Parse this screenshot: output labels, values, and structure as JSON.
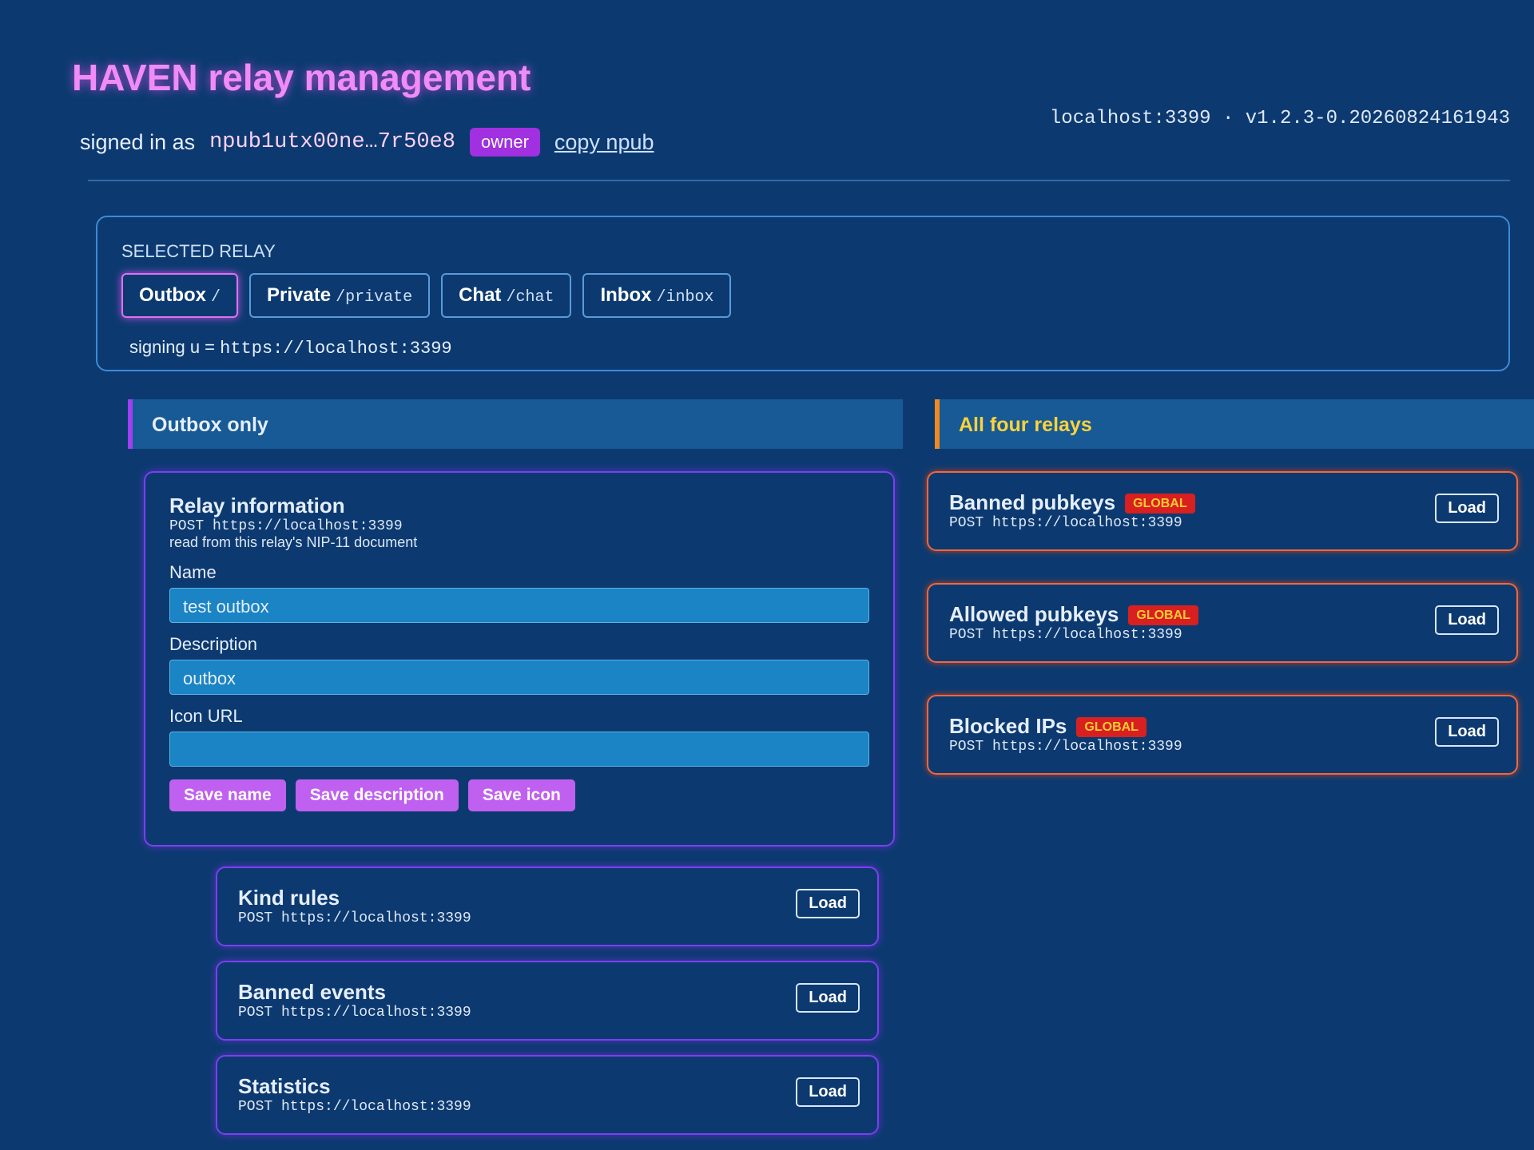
{
  "header": {
    "title": "HAVEN relay management",
    "signed_in_label": "signed in as",
    "npub": "npub1utx00ne…7r50e8",
    "role": "owner",
    "copy_link": "copy npub",
    "host_version": "localhost:3399 · v1.2.3-0.20260824161943"
  },
  "selected_relay": {
    "label": "SELECTED RELAY",
    "tabs": [
      {
        "name": "Outbox",
        "path": "/"
      },
      {
        "name": "Private",
        "path": "/private"
      },
      {
        "name": "Chat",
        "path": "/chat"
      },
      {
        "name": "Inbox",
        "path": "/inbox"
      }
    ],
    "signing_label": "signing u =",
    "signing_url": "https://localhost:3399"
  },
  "left": {
    "title": "Outbox only",
    "relay_info": {
      "title": "Relay information",
      "endpoint": "POST https://localhost:3399",
      "note": "read from this relay's NIP-11 document",
      "fields": [
        {
          "label": "Name",
          "value": "test outbox"
        },
        {
          "label": "Description",
          "value": "outbox"
        },
        {
          "label": "Icon URL",
          "value": ""
        }
      ],
      "buttons": [
        "Save name",
        "Save description",
        "Save icon"
      ]
    },
    "cards": [
      {
        "title": "Kind rules",
        "endpoint": "POST https://localhost:3399",
        "button": "Load"
      },
      {
        "title": "Banned events",
        "endpoint": "POST https://localhost:3399",
        "button": "Load"
      },
      {
        "title": "Statistics",
        "endpoint": "POST https://localhost:3399",
        "button": "Load"
      }
    ]
  },
  "right": {
    "title": "All four relays",
    "badge": "GLOBAL",
    "cards": [
      {
        "title": "Banned pubkeys",
        "endpoint": "POST https://localhost:3399",
        "button": "Load"
      },
      {
        "title": "Allowed pubkeys",
        "endpoint": "POST https://localhost:3399",
        "button": "Load"
      },
      {
        "title": "Blocked IPs",
        "endpoint": "POST https://localhost:3399",
        "button": "Load"
      }
    ]
  }
}
